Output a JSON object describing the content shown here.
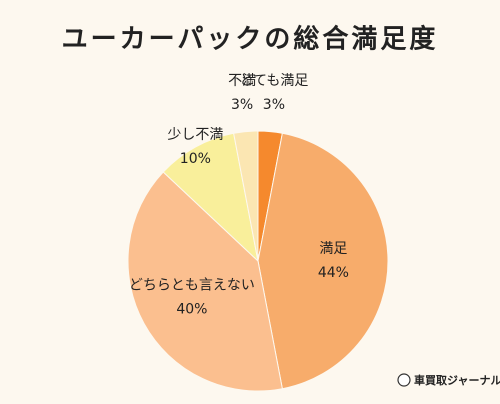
{
  "chart_data": {
    "type": "pie",
    "title": "ユーカーパックの総合満足度",
    "categories": [
      "とても満足",
      "満足",
      "どちらとも言えない",
      "少し不満",
      "不満"
    ],
    "values": [
      3,
      44,
      40,
      10,
      3
    ],
    "value_labels": [
      "3%",
      "44%",
      "40%",
      "10%",
      "3%"
    ],
    "colors": [
      "#f5892d",
      "#f7ac6b",
      "#fbbf8f",
      "#f9ef9b",
      "#fbe6b2"
    ]
  },
  "footer": {
    "brand": "車買取ジャーナル"
  }
}
